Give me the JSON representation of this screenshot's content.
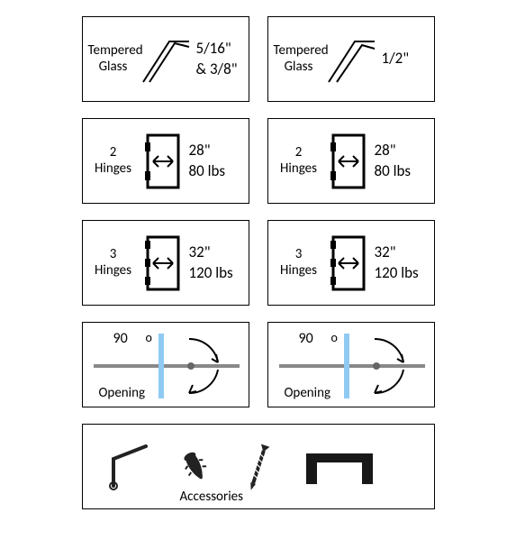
{
  "colors": {
    "stroke": "#000000",
    "glass": "#8fcaf2",
    "bg": "#ffffff"
  },
  "row1": [
    {
      "label": "Tempered\nGlass",
      "value": "5/16\"\n& 3/8\""
    },
    {
      "label": "Tempered\nGlass",
      "value": "1/2\""
    }
  ],
  "row2": [
    {
      "label": "2\nHinges",
      "width": "28\"",
      "weight": "80 lbs"
    },
    {
      "label": "2\nHinges",
      "width": "28\"",
      "weight": "80 lbs"
    }
  ],
  "row3": [
    {
      "label": "3\nHinges",
      "width": "32\"",
      "weight": "120 lbs"
    },
    {
      "label": "3\nHinges",
      "width": "32\"",
      "weight": "120 lbs"
    }
  ],
  "row4": [
    {
      "angle": "90",
      "deg": "o",
      "label": "Opening"
    },
    {
      "angle": "90",
      "deg": "o",
      "label": "Opening"
    }
  ],
  "accessories": {
    "label": "Accessories"
  }
}
